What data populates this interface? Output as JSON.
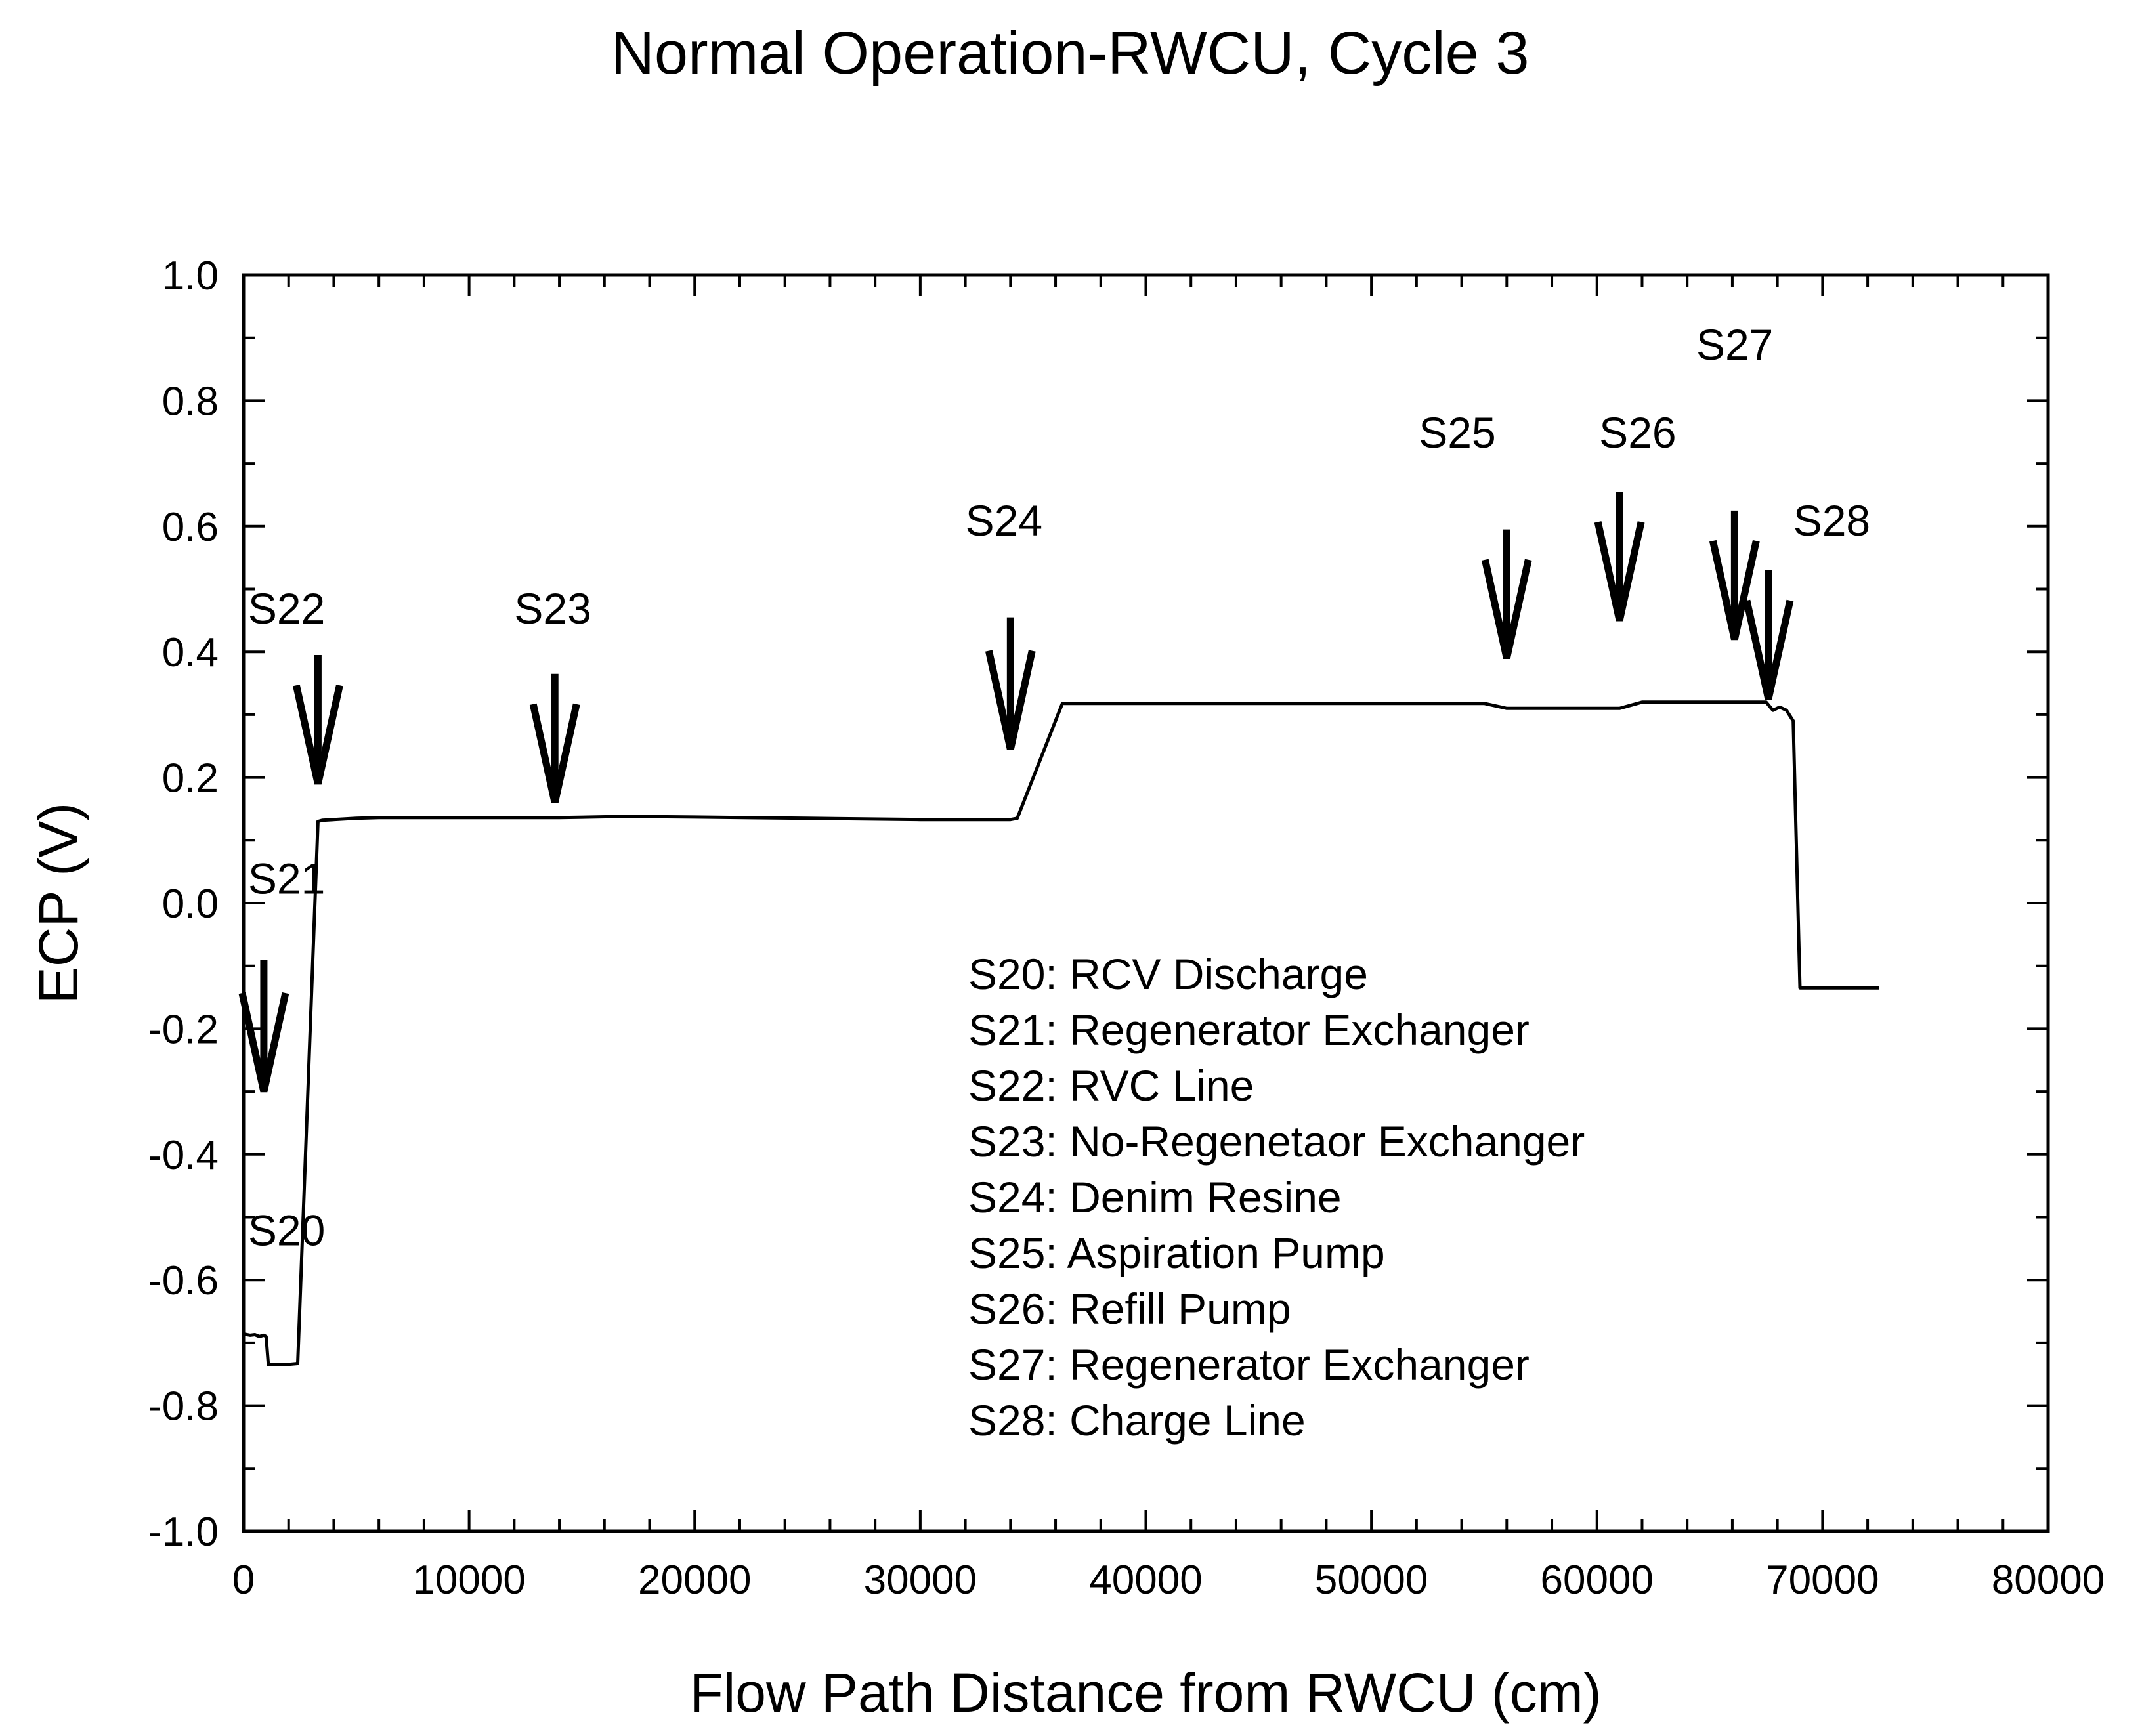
{
  "chart_data": {
    "type": "line",
    "title": "Normal Operation-RWCU, Cycle 3",
    "xlabel": "Flow Path Distance from RWCU (cm)",
    "ylabel": "ECP (V)",
    "xlim": [
      0,
      80000
    ],
    "ylim": [
      -1.0,
      1.0
    ],
    "x_ticks": [
      0,
      10000,
      20000,
      30000,
      40000,
      50000,
      60000,
      70000,
      80000
    ],
    "x_tick_labels": [
      "0",
      "10000",
      "20000",
      "30000",
      "40000",
      "50000",
      "60000",
      "70000",
      "80000"
    ],
    "y_ticks": [
      -1.0,
      -0.8,
      -0.6,
      -0.4,
      -0.2,
      0.0,
      0.2,
      0.4,
      0.6,
      0.8,
      1.0
    ],
    "y_tick_labels": [
      "-1.0",
      "-0.8",
      "-0.6",
      "-0.4",
      "-0.2",
      "0.0",
      "0.2",
      "0.4",
      "0.6",
      "0.8",
      "1.0"
    ],
    "series": [
      {
        "name": "ECP",
        "x": [
          0,
          300,
          500,
          700,
          900,
          1000,
          1100,
          1800,
          2400,
          3300,
          3500,
          5000,
          6000,
          10000,
          14000,
          17000,
          20000,
          25000,
          30000,
          34000,
          34300,
          36300,
          40000,
          45000,
          50000,
          55000,
          56000,
          58000,
          61000,
          62000,
          66000,
          67500,
          67800,
          68100,
          68400,
          68700,
          69000,
          72500
        ],
        "y": [
          -0.686,
          -0.688,
          -0.687,
          -0.69,
          -0.688,
          -0.69,
          -0.735,
          -0.735,
          -0.733,
          0.13,
          0.132,
          0.135,
          0.136,
          0.136,
          0.136,
          0.138,
          0.137,
          0.135,
          0.133,
          0.133,
          0.135,
          0.318,
          0.318,
          0.318,
          0.318,
          0.318,
          0.31,
          0.31,
          0.31,
          0.32,
          0.32,
          0.32,
          0.307,
          0.312,
          0.307,
          0.29,
          -0.135,
          -0.135
        ]
      }
    ],
    "annotations": [
      {
        "label": "S20",
        "x": 200,
        "y": -0.545,
        "arrow": false
      },
      {
        "label": "S21",
        "x": 200,
        "y": 0.015,
        "arrow": true,
        "arrow_x": 900,
        "arrow_top": -0.09,
        "arrow_tip": -0.3
      },
      {
        "label": "S22",
        "x": 200,
        "y": 0.445,
        "arrow": true,
        "arrow_x": 3300,
        "arrow_top": 0.395,
        "arrow_tip": 0.19
      },
      {
        "label": "S23",
        "x": 12000,
        "y": 0.445,
        "arrow": true,
        "arrow_x": 13800,
        "arrow_top": 0.365,
        "arrow_tip": 0.16
      },
      {
        "label": "S24",
        "x": 32000,
        "y": 0.585,
        "arrow": true,
        "arrow_x": 34000,
        "arrow_top": 0.455,
        "arrow_tip": 0.245
      },
      {
        "label": "S25",
        "x": 52100,
        "y": 0.725,
        "arrow": true,
        "arrow_x": 56000,
        "arrow_top": 0.595,
        "arrow_tip": 0.39
      },
      {
        "label": "S26",
        "x": 60100,
        "y": 0.725,
        "arrow": true,
        "arrow_x": 61000,
        "arrow_top": 0.655,
        "arrow_tip": 0.45
      },
      {
        "label": "S27",
        "x": 64400,
        "y": 0.865,
        "arrow": true,
        "arrow_x": 66100,
        "arrow_top": 0.625,
        "arrow_tip": 0.42
      },
      {
        "label": "S28",
        "x": 68700,
        "y": 0.585,
        "arrow": true,
        "arrow_x": 67600,
        "arrow_top": 0.53,
        "arrow_tip": 0.325
      }
    ],
    "legend_entries": [
      "S20: RCV Discharge",
      "S21: Regenerator Exchanger",
      "S22: RVC Line",
      "S23: No-Regenetaor Exchanger",
      "S24: Denim Resine",
      "S25: Aspiration Pump",
      "S26: Refill Pump",
      "S27: Regenerator Exchanger",
      "S28: Charge Line"
    ],
    "legend_position": "center-right",
    "grid": false,
    "line_color": "#000000"
  }
}
